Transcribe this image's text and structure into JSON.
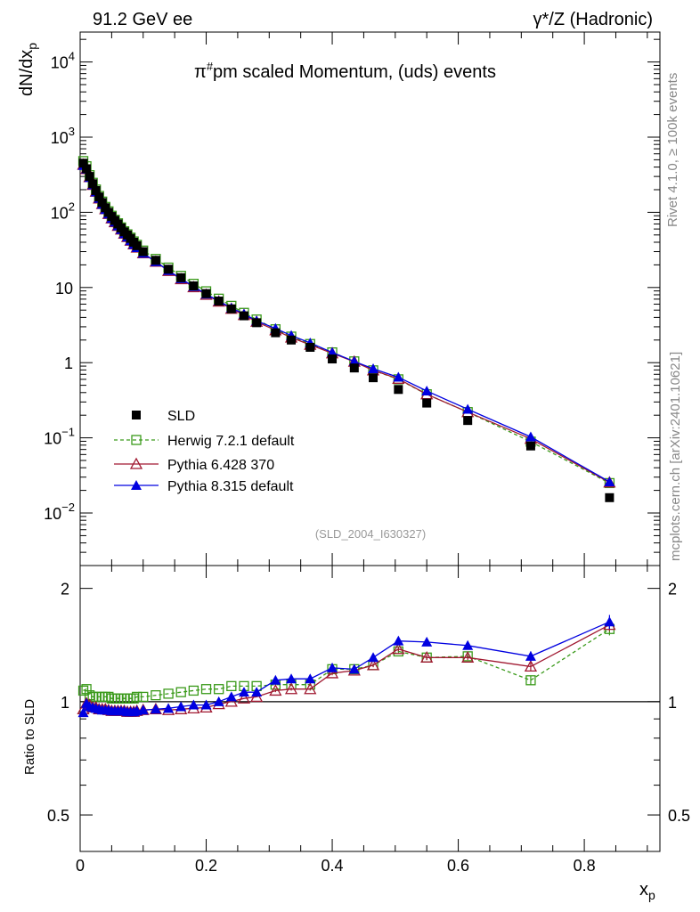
{
  "header": {
    "left": "91.2 GeV ee",
    "right": "γ*/Z (Hadronic)"
  },
  "side_labels": {
    "version": "Rivet 4.1.0, ≥ 100k events",
    "source": "mcplots.cern.ch [arXiv:2401.10621]"
  },
  "chart_data": {
    "type": "line",
    "title": "π#pm scaled Momentum, (uds) events",
    "title_main": "π",
    "title_sup": "#",
    "title_rest": "pm scaled Momentum, (uds) events",
    "analysis_id": "(SLD_2004_I630327)",
    "xlabel": "x",
    "xlabel_sub": "p",
    "ylabel": "dN/dx",
    "ylabel_sub": "p",
    "ratio_ylabel": "Ratio to SLD",
    "xlim": [
      0,
      0.92
    ],
    "ylim_log": [
      0.002,
      25000
    ],
    "ratio_ylim": [
      0.4,
      2.3
    ],
    "x_ticks": [
      "0",
      "0.2",
      "0.4",
      "0.6",
      "0.8"
    ],
    "y_ticks": [
      {
        "base": "10",
        "exp": "4"
      },
      {
        "base": "10",
        "exp": "3"
      },
      {
        "base": "10",
        "exp": "2"
      },
      {
        "base": "10",
        "exp": ""
      },
      {
        "base": "1",
        "exp": ""
      },
      {
        "base": "10",
        "exp": "−1"
      },
      {
        "base": "10",
        "exp": "−2"
      }
    ],
    "ratio_ticks": [
      "2",
      "1",
      "0.5"
    ],
    "legend": [
      "SLD",
      "Herwig 7.2.1 default",
      "Pythia 6.428 370",
      "Pythia 8.315 default"
    ],
    "x": [
      0.005,
      0.01,
      0.015,
      0.02,
      0.025,
      0.03,
      0.035,
      0.04,
      0.045,
      0.05,
      0.055,
      0.06,
      0.065,
      0.07,
      0.075,
      0.08,
      0.085,
      0.09,
      0.1,
      0.12,
      0.14,
      0.16,
      0.18,
      0.2,
      0.22,
      0.24,
      0.26,
      0.28,
      0.31,
      0.335,
      0.365,
      0.4,
      0.435,
      0.465,
      0.505,
      0.55,
      0.615,
      0.715,
      0.84
    ],
    "series": [
      {
        "name": "SLD",
        "color": "#000000",
        "marker": "square-filled",
        "values": [
          450,
          380,
          300,
          240,
          195,
          160,
          135,
          115,
          100,
          88,
          78,
          70,
          62,
          55,
          50,
          45,
          40,
          36,
          30,
          23,
          17.5,
          13.5,
          10.5,
          8.3,
          6.6,
          5.2,
          4.2,
          3.4,
          2.5,
          2.0,
          1.6,
          1.12,
          0.85,
          0.63,
          0.44,
          0.29,
          0.17,
          0.078,
          0.016
        ]
      },
      {
        "name": "Herwig 7.2.1 default",
        "color": "#3a9a1a",
        "marker": "square-open",
        "dashed": true,
        "values": [
          480,
          410,
          312,
          247,
          201,
          165,
          139,
          118,
          103,
          90,
          79.5,
          71.5,
          63,
          56,
          51,
          46,
          41,
          37,
          31,
          24,
          18.4,
          14.3,
          11.2,
          8.9,
          7.1,
          5.7,
          4.6,
          3.75,
          2.78,
          2.22,
          1.77,
          1.37,
          1.04,
          0.79,
          0.6,
          0.38,
          0.22,
          0.089,
          0.025
        ]
      },
      {
        "name": "Pythia 6.428 370",
        "color": "#a01830",
        "marker": "triangle-open",
        "values": [
          430,
          376,
          294,
          232,
          188,
          153,
          129,
          110,
          95,
          83,
          74,
          66,
          59,
          52,
          47,
          42,
          37.5,
          34,
          28.5,
          22,
          16.6,
          12.9,
          10.1,
          8.0,
          6.5,
          5.2,
          4.3,
          3.5,
          2.7,
          2.16,
          1.73,
          1.33,
          1.03,
          0.79,
          0.61,
          0.38,
          0.22,
          0.097,
          0.0255
        ]
      },
      {
        "name": "Pythia 8.315 default",
        "color": "#0000e0",
        "marker": "triangle-filled",
        "values": [
          420,
          376,
          291,
          232,
          187,
          153,
          128,
          109,
          95,
          83,
          74,
          66,
          59,
          52,
          47,
          42,
          37.5,
          34,
          28.5,
          22,
          16.8,
          13.1,
          10.3,
          8.15,
          6.6,
          5.35,
          4.45,
          3.6,
          2.85,
          2.3,
          1.83,
          1.37,
          1.04,
          0.83,
          0.64,
          0.42,
          0.24,
          0.103,
          0.026
        ]
      }
    ],
    "ratios": [
      {
        "name": "Herwig 7.2.1 default",
        "values": [
          1.07,
          1.08,
          1.04,
          1.03,
          1.03,
          1.03,
          1.03,
          1.03,
          1.03,
          1.02,
          1.02,
          1.02,
          1.02,
          1.02,
          1.02,
          1.02,
          1.02,
          1.03,
          1.03,
          1.04,
          1.05,
          1.06,
          1.07,
          1.08,
          1.08,
          1.1,
          1.1,
          1.1,
          1.11,
          1.11,
          1.11,
          1.22,
          1.22,
          1.25,
          1.36,
          1.31,
          1.32,
          1.14,
          1.56
        ],
        "errors": [
          0,
          0,
          0,
          0,
          0,
          0,
          0,
          0,
          0,
          0,
          0,
          0,
          0,
          0,
          0,
          0,
          0,
          0,
          0,
          0,
          0,
          0,
          0,
          0,
          0,
          0,
          0,
          0,
          0.01,
          0.01,
          0.01,
          0.015,
          0.015,
          0.015,
          0.02,
          0.02,
          0.02,
          0.03,
          0.06
        ]
      },
      {
        "name": "Pythia 6.428 370",
        "values": [
          0.955,
          0.99,
          0.98,
          0.965,
          0.965,
          0.955,
          0.955,
          0.955,
          0.95,
          0.945,
          0.945,
          0.945,
          0.945,
          0.945,
          0.94,
          0.94,
          0.94,
          0.945,
          0.95,
          0.955,
          0.95,
          0.955,
          0.96,
          0.965,
          0.985,
          1.0,
          1.02,
          1.03,
          1.07,
          1.08,
          1.08,
          1.19,
          1.21,
          1.25,
          1.38,
          1.31,
          1.31,
          1.24,
          1.6
        ],
        "errors": [
          0,
          0,
          0,
          0,
          0,
          0,
          0,
          0,
          0,
          0,
          0,
          0,
          0,
          0,
          0,
          0,
          0,
          0,
          0,
          0,
          0,
          0,
          0,
          0,
          0,
          0,
          0,
          0,
          0.01,
          0.01,
          0.01,
          0.015,
          0.015,
          0.015,
          0.02,
          0.02,
          0.02,
          0.03,
          0.06
        ]
      },
      {
        "name": "Pythia 8.315 default",
        "values": [
          0.935,
          0.99,
          0.97,
          0.965,
          0.96,
          0.955,
          0.95,
          0.95,
          0.95,
          0.945,
          0.945,
          0.945,
          0.945,
          0.945,
          0.94,
          0.94,
          0.94,
          0.945,
          0.95,
          0.955,
          0.96,
          0.97,
          0.98,
          0.98,
          1.0,
          1.03,
          1.06,
          1.06,
          1.14,
          1.15,
          1.15,
          1.23,
          1.22,
          1.31,
          1.45,
          1.44,
          1.41,
          1.32,
          1.63
        ],
        "errors": [
          0,
          0,
          0,
          0,
          0,
          0,
          0,
          0,
          0,
          0,
          0,
          0,
          0,
          0,
          0,
          0,
          0,
          0,
          0,
          0,
          0,
          0,
          0,
          0,
          0,
          0,
          0,
          0,
          0.01,
          0.01,
          0.01,
          0.015,
          0.015,
          0.02,
          0.025,
          0.025,
          0.03,
          0.04,
          0.07
        ]
      }
    ]
  }
}
